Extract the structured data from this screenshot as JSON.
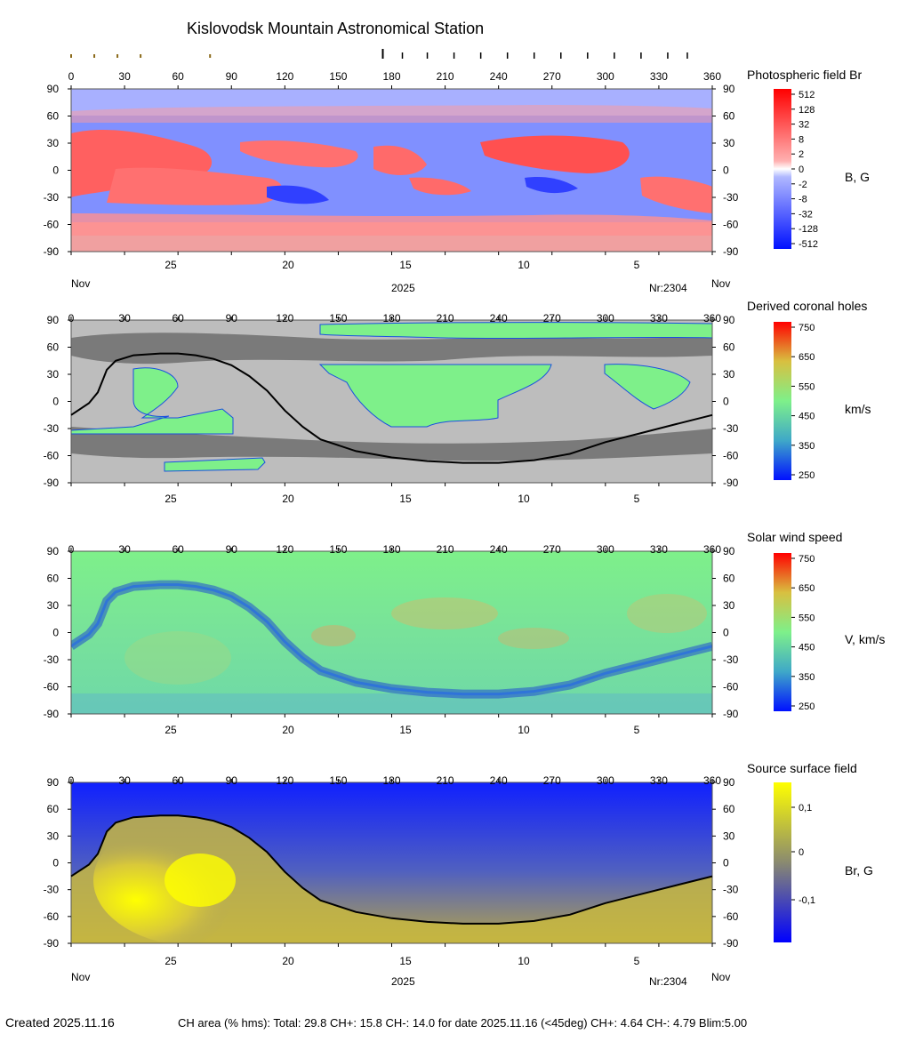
{
  "title": "Kislovodsk Mountain Astronomical Station",
  "axes": {
    "x_ticks": [
      "0",
      "30",
      "60",
      "90",
      "120",
      "150",
      "180",
      "210",
      "240",
      "270",
      "300",
      "330",
      "360"
    ],
    "y_ticks": [
      "90",
      "60",
      "30",
      "0",
      "-30",
      "-60",
      "-90"
    ],
    "date_ticks": [
      "25",
      "20",
      "15",
      "10",
      "5"
    ],
    "month_left": "Nov",
    "month_right": "Nov",
    "year": "2025",
    "rotation": "Nr:2304"
  },
  "colors": {
    "field_pos": "#ff2a2a",
    "field_neg": "#2a3cff",
    "ch_gray_dark": "#7a7a7a",
    "ch_gray_light": "#bdbdbd",
    "wind_green": "#7ef08a",
    "source_yellow": "#ffff00",
    "source_blue": "#0000ff",
    "neutral_line": "#000000"
  },
  "panels": {
    "photospheric": {
      "title": "Photospheric field Br",
      "unit": "B, G",
      "colorbar_labels": [
        "512",
        "128",
        "32",
        "8",
        "2",
        "0",
        "-2",
        "-8",
        "-32",
        "-128",
        "-512"
      ]
    },
    "coronal_holes": {
      "title": "Derived coronal holes",
      "unit": "km/s",
      "colorbar_labels": [
        "750",
        "650",
        "550",
        "450",
        "350",
        "250"
      ]
    },
    "solar_wind": {
      "title": "Solar wind speed",
      "unit": "V, km/s",
      "colorbar_labels": [
        "750",
        "650",
        "550",
        "450",
        "350",
        "250"
      ]
    },
    "source_surface": {
      "title": "Source surface field",
      "unit": "Br, G",
      "colorbar_labels": [
        "0,1",
        "0",
        "-0,1"
      ]
    }
  },
  "footer": {
    "created": "Created  2025.11.16",
    "ch_area": "CH area (% hms): Total: 29.8 CH+: 15.8   CH-: 14.0 for date 2025.11.16 (<45deg) CH+: 4.64    CH-: 4.79 Blim:5.00"
  },
  "chart_data": [
    {
      "type": "heatmap",
      "title": "Photospheric field Br",
      "xlabel": "",
      "ylabel": "",
      "xlim": [
        0,
        360
      ],
      "ylim": [
        -90,
        90
      ],
      "colorbar": {
        "unit": "B, G",
        "range": [
          -512,
          512
        ],
        "scale": "log-symmetric"
      }
    },
    {
      "type": "heatmap",
      "title": "Derived coronal holes",
      "xlim": [
        0,
        360
      ],
      "ylim": [
        -90,
        90
      ],
      "colorbar": {
        "unit": "km/s",
        "range": [
          250,
          750
        ]
      }
    },
    {
      "type": "heatmap",
      "title": "Solar wind speed",
      "xlim": [
        0,
        360
      ],
      "ylim": [
        -90,
        90
      ],
      "colorbar": {
        "unit": "V, km/s",
        "range": [
          250,
          750
        ]
      }
    },
    {
      "type": "heatmap",
      "title": "Source surface field",
      "xlim": [
        0,
        360
      ],
      "ylim": [
        -90,
        90
      ],
      "colorbar": {
        "unit": "Br, G",
        "range": [
          -0.15,
          0.15
        ]
      },
      "neutral_line": {
        "x": [
          0,
          10,
          15,
          18,
          20,
          25,
          35,
          50,
          60,
          70,
          80,
          90,
          100,
          110,
          120,
          130,
          140,
          160,
          180,
          200,
          220,
          240,
          260,
          280,
          300,
          320,
          340,
          360
        ],
        "y": [
          -15,
          -2,
          10,
          25,
          35,
          45,
          51,
          53,
          53,
          51,
          47,
          40,
          28,
          12,
          -10,
          -28,
          -42,
          -55,
          -62,
          -66,
          -68,
          -68,
          -65,
          -58,
          -45,
          -35,
          -25,
          -15
        ]
      }
    }
  ]
}
